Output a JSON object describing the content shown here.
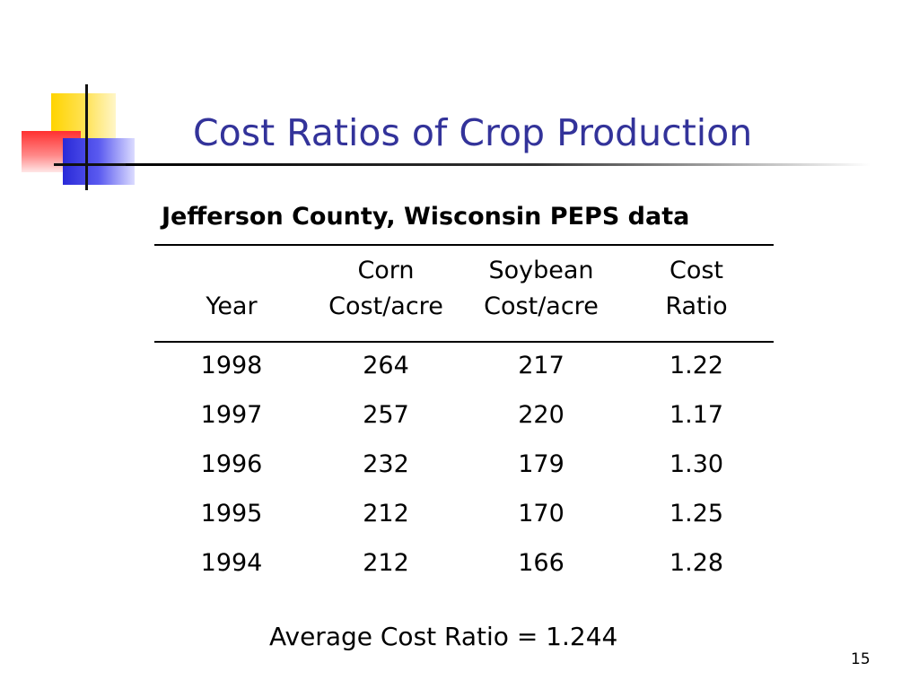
{
  "slide": {
    "title": "Cost Ratios of Crop Production",
    "page_number": "15"
  },
  "table": {
    "title": "Jefferson County, Wisconsin PEPS data",
    "headers": [
      {
        "line1": "",
        "line2": "Year"
      },
      {
        "line1": "Corn",
        "line2": "Cost/acre"
      },
      {
        "line1": "Soybean",
        "line2": "Cost/acre"
      },
      {
        "line1": "Cost",
        "line2": "Ratio"
      }
    ],
    "rows": [
      [
        "1998",
        "264",
        "217",
        "1.22"
      ],
      [
        "1997",
        "257",
        "220",
        "1.17"
      ],
      [
        "1996",
        "232",
        "179",
        "1.30"
      ],
      [
        "1995",
        "212",
        "170",
        "1.25"
      ],
      [
        "1994",
        "212",
        "166",
        "1.28"
      ]
    ]
  },
  "summary": {
    "average_text": "Average Cost Ratio = 1.244"
  },
  "colors": {
    "title": "#33339a",
    "deco_yellow": "#ffd400",
    "deco_red": "#ff3030",
    "deco_blue": "#2a2ad8"
  }
}
